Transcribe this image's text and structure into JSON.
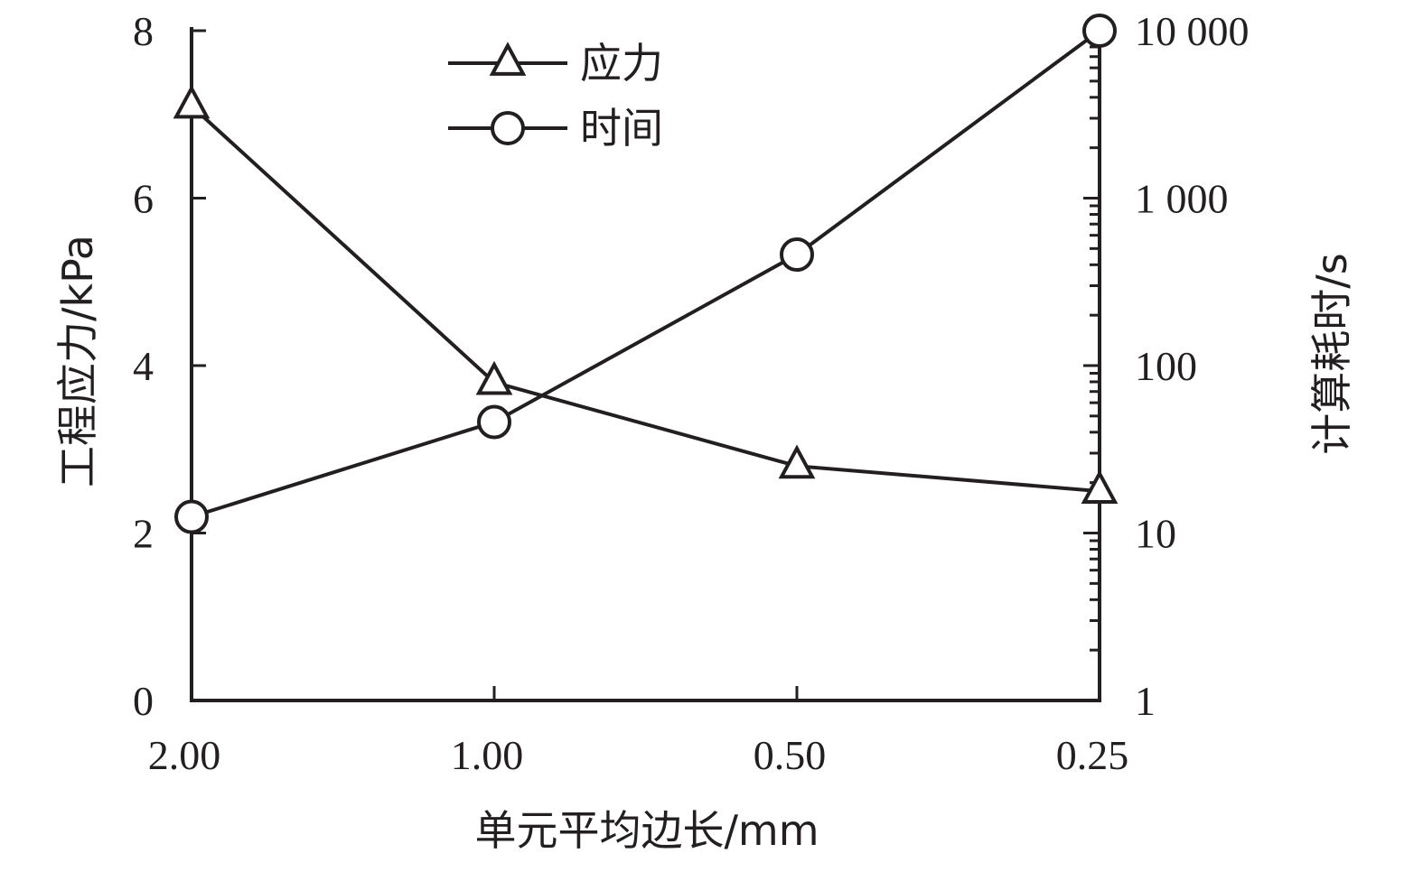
{
  "chart_data": {
    "type": "line",
    "x": {
      "label": "单元平均边长/mm",
      "categories": [
        "2.00",
        "1.00",
        "0.50",
        "0.25"
      ]
    },
    "y_left": {
      "label": "工程应力/kPa",
      "ylim": [
        0,
        8
      ],
      "ticks": [
        0,
        2,
        4,
        6,
        8
      ],
      "tick_labels": [
        "0",
        "2",
        "4",
        "6",
        "8"
      ]
    },
    "y_right": {
      "label": "计算耗时/s",
      "scale": "log",
      "ylim": [
        1,
        10000
      ],
      "ticks": [
        1,
        10,
        100,
        1000,
        10000
      ],
      "tick_labels": [
        "1",
        "10",
        "100",
        "1 000",
        "10 000"
      ]
    },
    "series": [
      {
        "name": "应力",
        "axis": "left",
        "marker": "triangle",
        "values": [
          7.1,
          3.8,
          2.8,
          2.5
        ]
      },
      {
        "name": "时间",
        "axis": "right",
        "marker": "circle",
        "values": [
          12.5,
          46,
          460,
          10000
        ]
      }
    ],
    "legend": {
      "placement": "top-center"
    },
    "grid": false,
    "colors": {
      "ink": "#231f20",
      "background": "#ffffff"
    }
  }
}
